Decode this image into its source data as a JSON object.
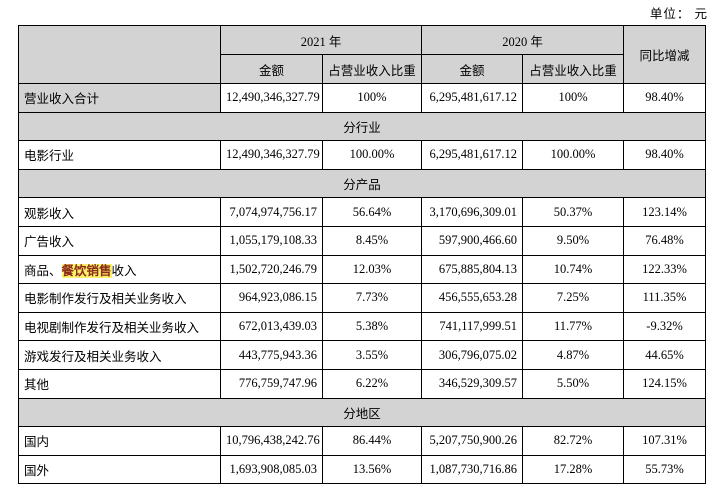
{
  "page": {
    "unit_label": "单位： 元"
  },
  "colors": {
    "header_bg": "#d3d3d3",
    "border": "#000000",
    "highlight_bg": "#fbf26a",
    "highlight_text": "#8b2b1c"
  },
  "table": {
    "header": {
      "year_2021": "2021 年",
      "year_2020": "2020 年",
      "yoy": "同比增减",
      "amount_2021": "金额",
      "ratio_2021": "占营业收入比重",
      "amount_2020": "金额",
      "ratio_2020": "占营业收入比重"
    },
    "rows": [
      {
        "type": "data",
        "label": "营业收入合计",
        "label_shaded": true,
        "a2021": "12,490,346,327.79",
        "r2021": "100%",
        "a2020": "6,295,481,617.12",
        "r2020": "100%",
        "yoy": "98.40%"
      },
      {
        "type": "section",
        "label": "分行业"
      },
      {
        "type": "data",
        "label": "电影行业",
        "a2021": "12,490,346,327.79",
        "r2021": "100.00%",
        "a2020": "6,295,481,617.12",
        "r2020": "100.00%",
        "yoy": "98.40%"
      },
      {
        "type": "section",
        "label": "分产品"
      },
      {
        "type": "data",
        "label": "观影收入",
        "a2021": "7,074,974,756.17",
        "r2021": "56.64%",
        "a2020": "3,170,696,309.01",
        "r2020": "50.37%",
        "yoy": "123.14%"
      },
      {
        "type": "data",
        "label": "广告收入",
        "a2021": "1,055,179,108.33",
        "r2021": "8.45%",
        "a2020": "597,900,466.60",
        "r2020": "9.50%",
        "yoy": "76.48%"
      },
      {
        "type": "data",
        "label": [
          {
            "text": "商品、"
          },
          {
            "text": "餐饮销售",
            "highlight": true
          },
          {
            "text": "收入"
          }
        ],
        "a2021": "1,502,720,246.79",
        "r2021": "12.03%",
        "a2020": "675,885,804.13",
        "r2020": "10.74%",
        "yoy": "122.33%"
      },
      {
        "type": "data",
        "label": "电影制作发行及相关业务收入",
        "a2021": "964,923,086.15",
        "r2021": "7.73%",
        "a2020": "456,555,653.28",
        "r2020": "7.25%",
        "yoy": "111.35%"
      },
      {
        "type": "data",
        "label": "电视剧制作发行及相关业务收入",
        "a2021": "672,013,439.03",
        "r2021": "5.38%",
        "a2020": "741,117,999.51",
        "r2020": "11.77%",
        "yoy": "-9.32%"
      },
      {
        "type": "data",
        "label": "游戏发行及相关业务收入",
        "a2021": "443,775,943.36",
        "r2021": "3.55%",
        "a2020": "306,796,075.02",
        "r2020": "4.87%",
        "yoy": "44.65%"
      },
      {
        "type": "data",
        "label": "其他",
        "a2021": "776,759,747.96",
        "r2021": "6.22%",
        "a2020": "346,529,309.57",
        "r2020": "5.50%",
        "yoy": "124.15%"
      },
      {
        "type": "section",
        "label": "分地区"
      },
      {
        "type": "data",
        "label": "国内",
        "a2021": "10,796,438,242.76",
        "r2021": "86.44%",
        "a2020": "5,207,750,900.26",
        "r2020": "82.72%",
        "yoy": "107.31%"
      },
      {
        "type": "data",
        "label": "国外",
        "a2021": "1,693,908,085.03",
        "r2021": "13.56%",
        "a2020": "1,087,730,716.86",
        "r2020": "17.28%",
        "yoy": "55.73%"
      }
    ]
  }
}
